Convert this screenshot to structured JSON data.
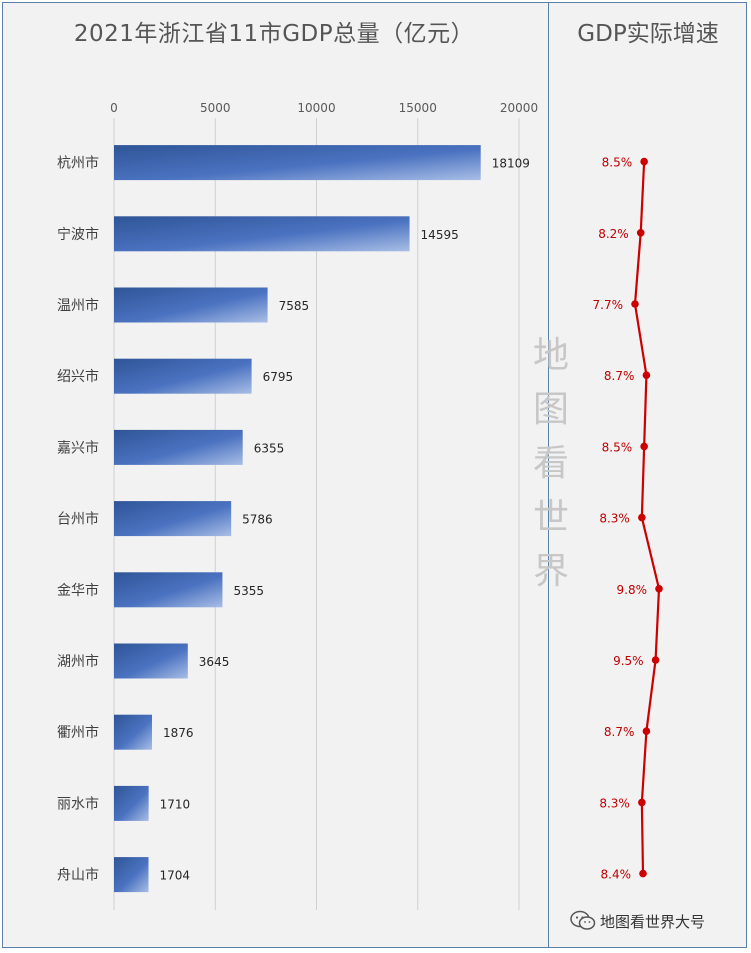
{
  "left_title": "2021年浙江省11市GDP总量（亿元）",
  "right_title": "GDP实际增速",
  "watermark": [
    "地",
    "图",
    "看",
    "世",
    "界"
  ],
  "footer": {
    "text": "地图看世界大号",
    "icon": "wechat-icon"
  },
  "colors": {
    "bar_dark": "#2f5597",
    "bar_light": "#a9bee6",
    "line": "#cc0000",
    "growth_label": "#c00000"
  },
  "chart_data": [
    {
      "type": "bar",
      "orientation": "horizontal",
      "title": "2021年浙江省11市GDP总量（亿元）",
      "categories": [
        "杭州市",
        "宁波市",
        "温州市",
        "绍兴市",
        "嘉兴市",
        "台州市",
        "金华市",
        "湖州市",
        "衢州市",
        "丽水市",
        "舟山市"
      ],
      "values": [
        18109,
        14595,
        7585,
        6795,
        6355,
        5786,
        5355,
        3645,
        1876,
        1710,
        1704
      ],
      "xlim": [
        0,
        20000
      ],
      "ticks": [
        0,
        5000,
        10000,
        15000,
        20000
      ],
      "tick_labels": [
        "0",
        "5000",
        "10000",
        "15000",
        "20000"
      ],
      "grid": true,
      "data_labels": true
    },
    {
      "type": "line",
      "title": "GDP实际增速",
      "categories": [
        "杭州市",
        "宁波市",
        "温州市",
        "绍兴市",
        "嘉兴市",
        "台州市",
        "金华市",
        "湖州市",
        "衢州市",
        "丽水市",
        "舟山市"
      ],
      "values": [
        8.5,
        8.2,
        7.7,
        8.7,
        8.5,
        8.3,
        9.8,
        9.5,
        8.7,
        8.3,
        8.4
      ],
      "labels": [
        "8.5%",
        "8.2%",
        "7.7%",
        "8.7%",
        "8.5%",
        "8.3%",
        "9.8%",
        "9.5%",
        "8.7%",
        "8.3%",
        "8.4%"
      ],
      "unit": "%"
    }
  ]
}
